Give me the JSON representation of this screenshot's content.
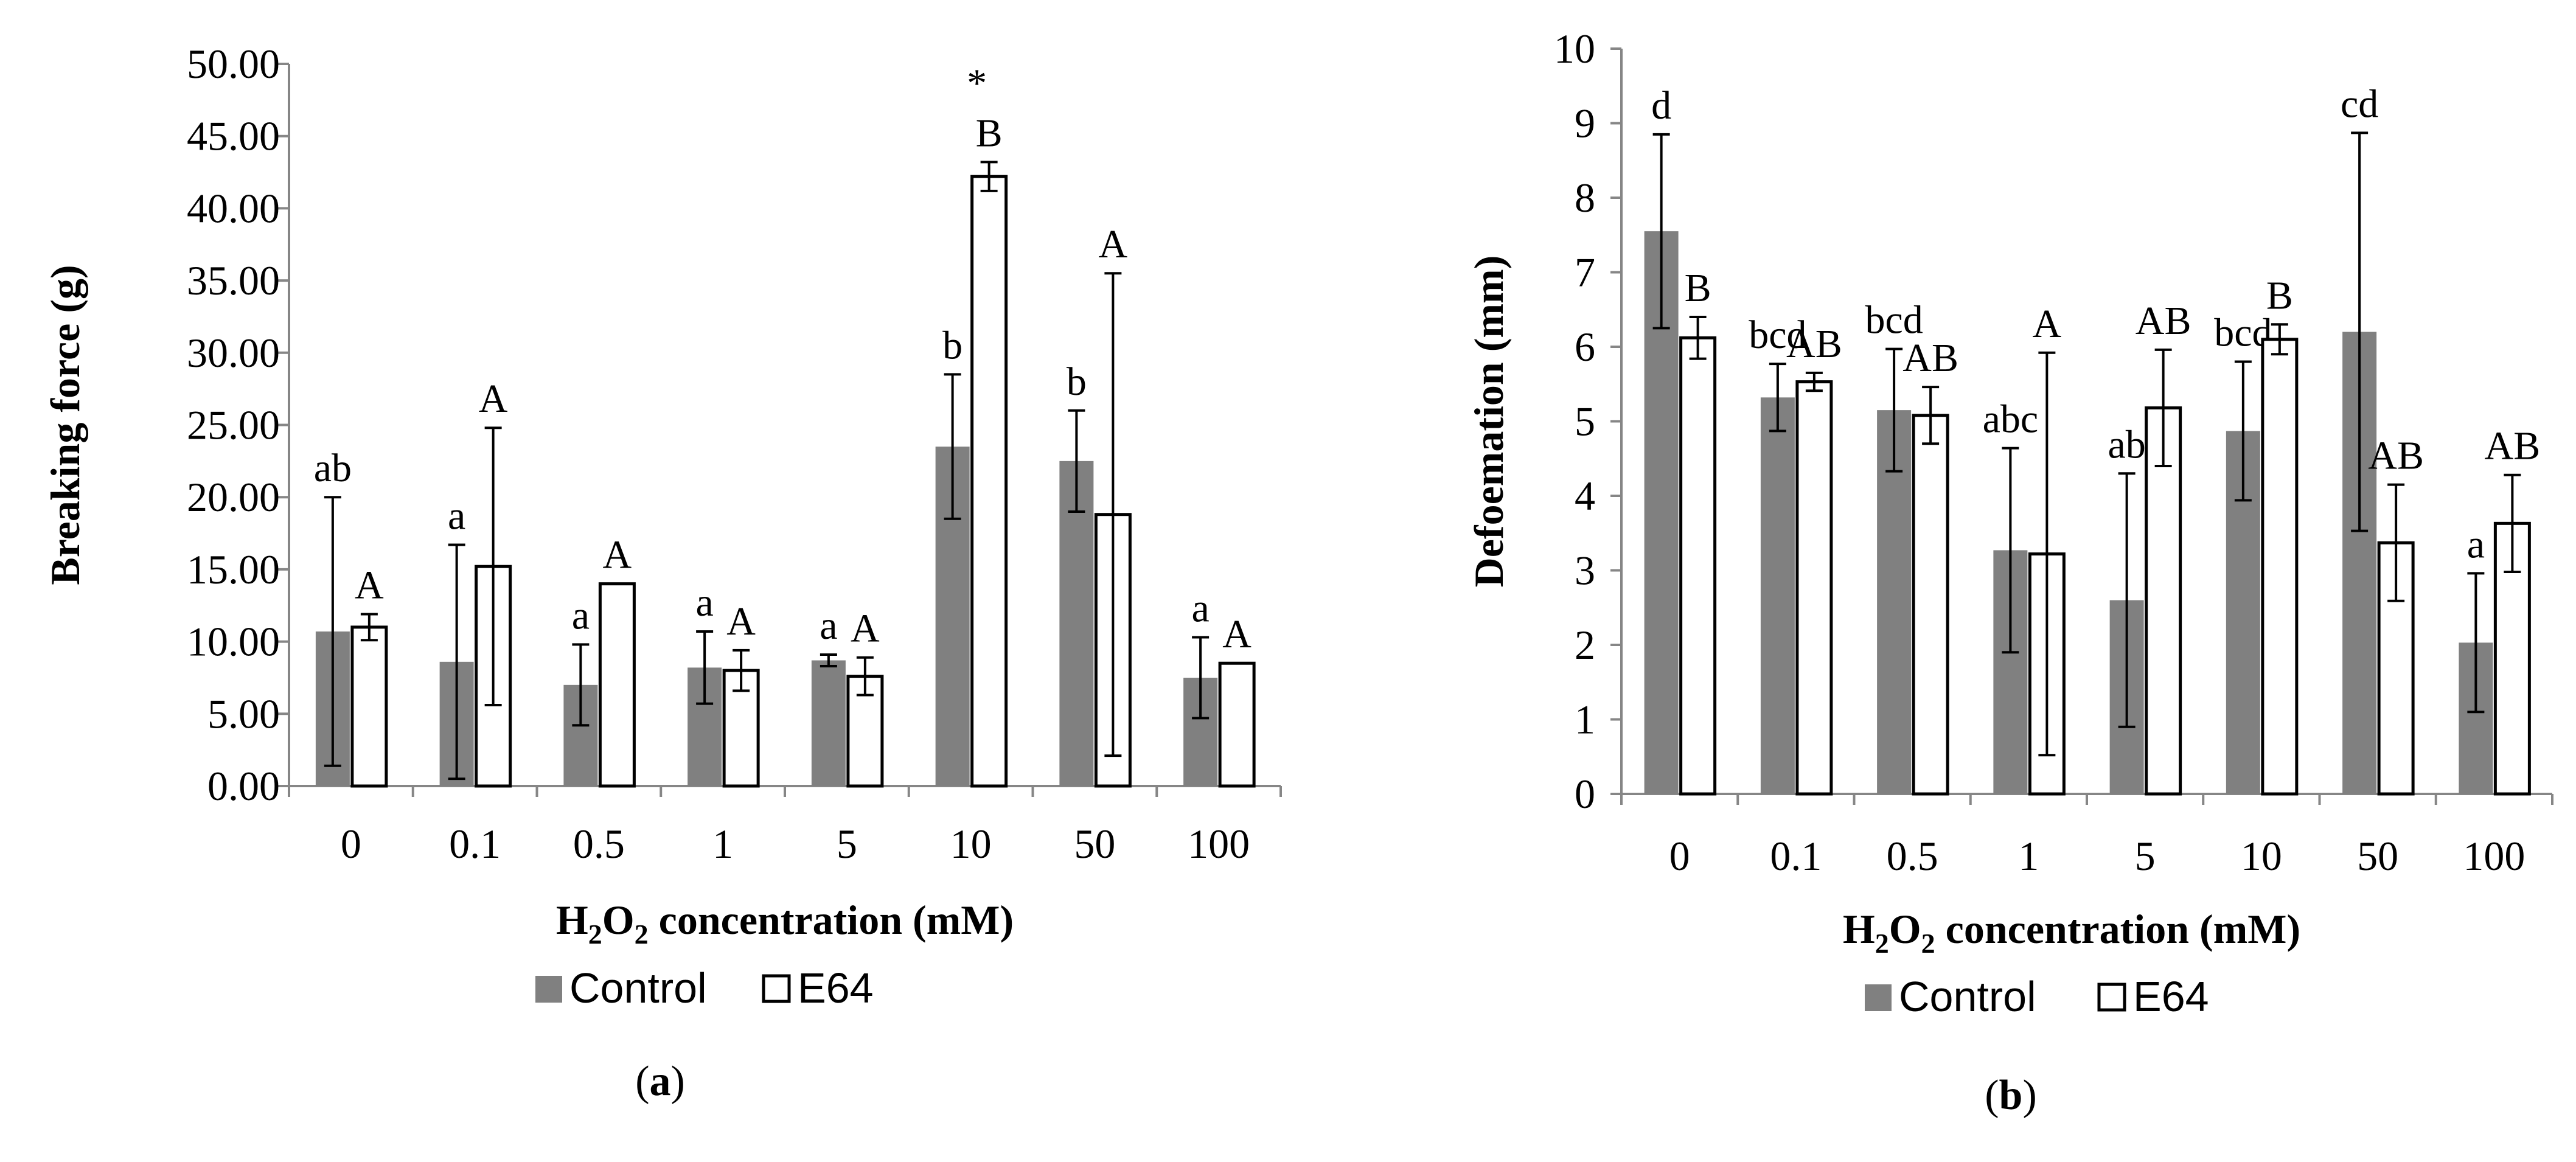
{
  "chart_data": [
    {
      "type": "bar",
      "panel": "a",
      "categories": [
        "0",
        "0.1",
        "0.5",
        "1",
        "5",
        "10",
        "50",
        "100"
      ],
      "series": [
        {
          "name": "Control",
          "color": "#808080",
          "values": [
            10.7,
            8.6,
            7.0,
            8.2,
            8.7,
            23.5,
            22.5,
            7.5
          ],
          "errors": [
            9.3,
            8.1,
            2.8,
            2.5,
            0.4,
            5.0,
            3.5,
            2.8
          ],
          "letters": [
            "ab",
            "a",
            "a",
            "a",
            "a",
            "b",
            "b",
            "a"
          ]
        },
        {
          "name": "E64",
          "color": "#ffffff",
          "values": [
            11.0,
            15.2,
            14.0,
            8.0,
            7.6,
            42.2,
            18.8,
            8.5
          ],
          "errors": [
            0.9,
            9.6,
            0.0,
            1.4,
            1.3,
            1.0,
            16.7,
            0.0
          ],
          "letters": [
            "A",
            "A",
            "A",
            "A",
            "A",
            "B",
            "A",
            "A"
          ]
        }
      ],
      "annotations": [
        {
          "category": "10",
          "text": "*"
        }
      ],
      "xlabel_parts": [
        "H",
        "2",
        "O",
        "2",
        " concentration (mM)"
      ],
      "ylabel": "Breaking force (g)",
      "ylim": [
        0,
        50
      ],
      "yticks": [
        "0.00",
        "5.00",
        "10.00",
        "15.00",
        "20.00",
        "25.00",
        "30.00",
        "35.00",
        "40.00",
        "45.00",
        "50.00"
      ],
      "legend": [
        "Control",
        "E64"
      ],
      "panel_label": "a"
    },
    {
      "type": "bar",
      "panel": "b",
      "categories": [
        "0",
        "0.1",
        "0.5",
        "1",
        "5",
        "10",
        "50",
        "100"
      ],
      "series": [
        {
          "name": "Control",
          "color": "#808080",
          "values": [
            7.55,
            5.32,
            5.15,
            3.27,
            2.6,
            4.87,
            6.2,
            2.03
          ],
          "errors": [
            1.3,
            0.45,
            0.82,
            1.37,
            1.7,
            0.93,
            2.67,
            0.93
          ],
          "letters": [
            "d",
            "bcd",
            "bcd",
            "abc",
            "ab",
            "bcd",
            "cd",
            "a"
          ]
        },
        {
          "name": "E64",
          "color": "#ffffff",
          "values": [
            6.12,
            5.53,
            5.08,
            3.22,
            5.18,
            6.1,
            3.37,
            3.63
          ],
          "errors": [
            0.28,
            0.12,
            0.38,
            2.7,
            0.78,
            0.2,
            0.78,
            0.65
          ],
          "letters": [
            "B",
            "AB",
            "AB",
            "A",
            "AB",
            "B",
            "AB",
            "AB"
          ]
        }
      ],
      "xlabel_parts": [
        "H",
        "2",
        "O",
        "2",
        " concentration (mM)"
      ],
      "ylabel": "Defoemation (mm)",
      "ylim": [
        0,
        10
      ],
      "yticks": [
        "0",
        "1",
        "2",
        "3",
        "4",
        "5",
        "6",
        "7",
        "8",
        "9",
        "10"
      ],
      "legend": [
        "Control",
        "E64"
      ],
      "panel_label": "b"
    }
  ]
}
